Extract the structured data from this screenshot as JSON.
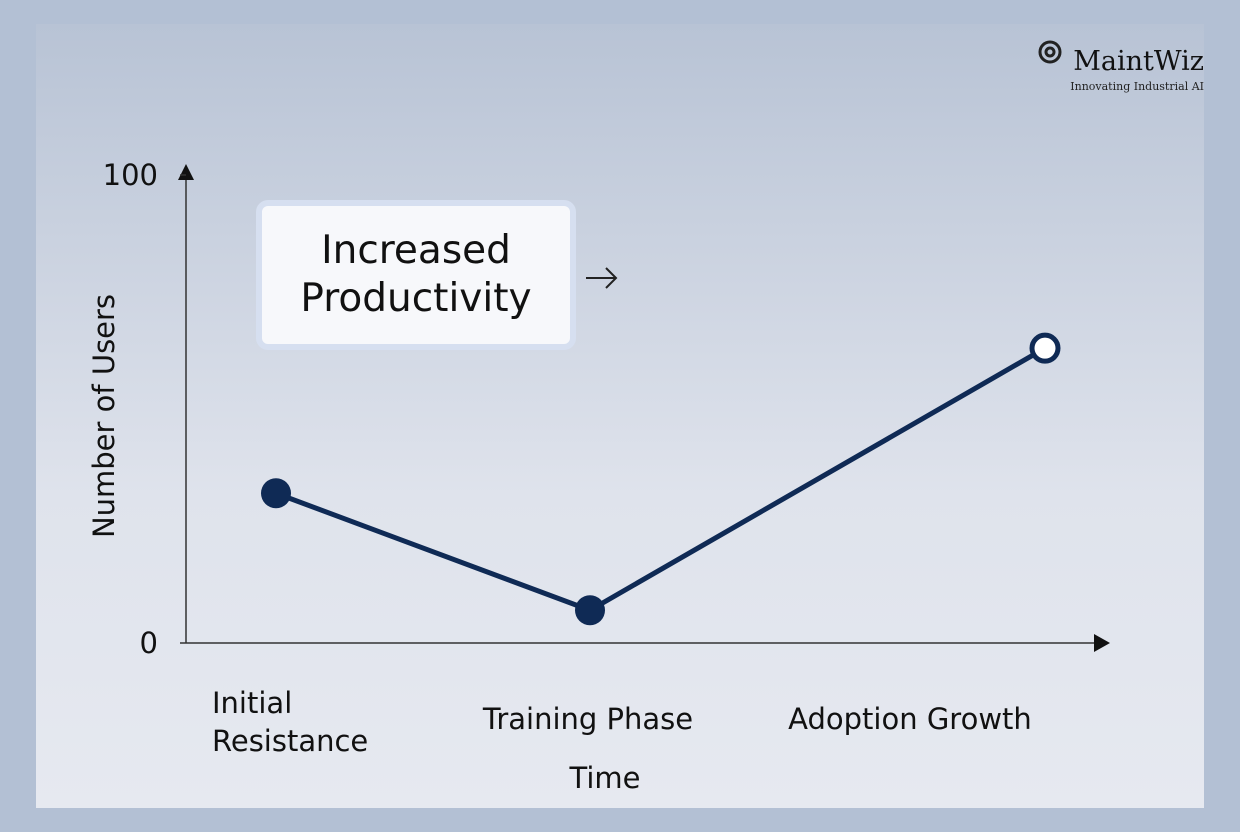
{
  "chart_data": {
    "type": "line",
    "categories": [
      "Initial Resistance",
      "Training Phase",
      "Adoption Growth"
    ],
    "series": [
      {
        "color": "#0f2a55",
        "values": [
          32,
          7,
          63
        ],
        "markers": [
          "filled",
          "filled",
          "open"
        ]
      }
    ],
    "ylim": [
      0,
      100
    ],
    "yticks": [
      0,
      100
    ],
    "y_label": "Number of Users",
    "x_label": "Time",
    "annotation": "Increased Productivity",
    "logo": {
      "name": "MaintWiz",
      "tagline": "Innovating Industrial AI"
    }
  }
}
